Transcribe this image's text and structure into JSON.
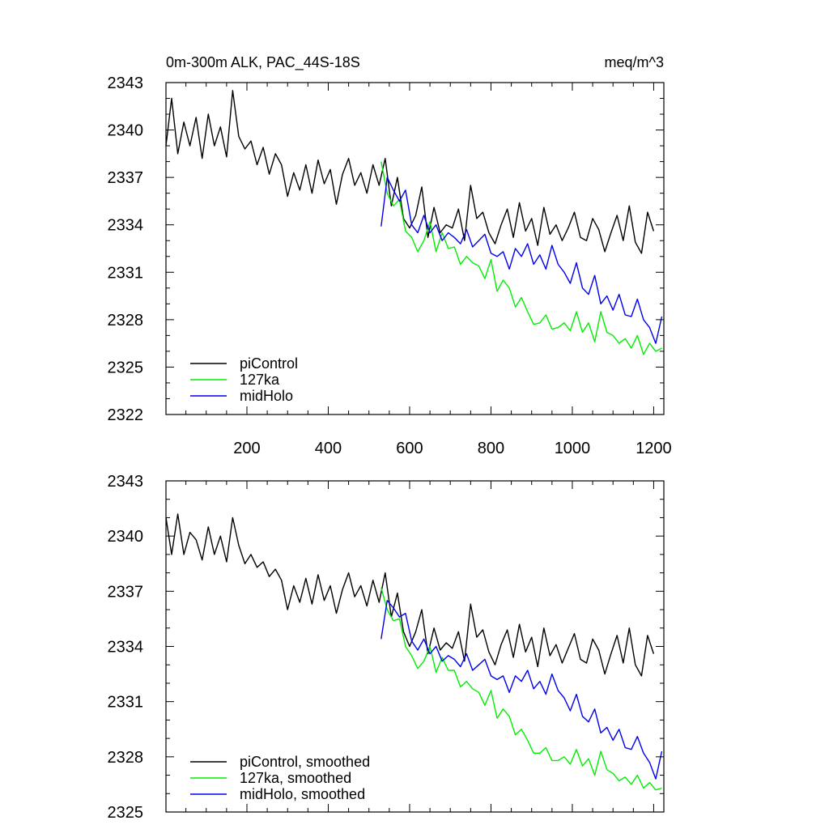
{
  "colors": {
    "piControl": "#000000",
    "127ka": "#00ee00",
    "midHolo": "#0000ee"
  },
  "chart_data": [
    {
      "type": "line",
      "title_left": "0m-300m ALK, PAC_44S-18S",
      "title_right": "meq/m^3",
      "xlabel": "",
      "ylabel": "",
      "xlim": [
        1,
        1225
      ],
      "ylim": [
        2322,
        2343
      ],
      "xticks": [
        200,
        400,
        600,
        800,
        1000,
        1200
      ],
      "xtick_labels": [
        "200",
        "400",
        "600",
        "800",
        "1000",
        "1200"
      ],
      "yticks": [
        2322,
        2325,
        2328,
        2331,
        2334,
        2337,
        2340,
        2343
      ],
      "ytick_labels": [
        "2322",
        "2325",
        "2328",
        "2331",
        "2334",
        "2337",
        "2340",
        "2343"
      ],
      "legend": [
        "piControl",
        "127ka",
        "midHolo"
      ],
      "legend_position": "bottom-left",
      "series": [
        {
          "name": "piControl",
          "key": "piControl",
          "x": [
            1,
            15,
            30,
            45,
            60,
            75,
            90,
            105,
            120,
            135,
            150,
            165,
            180,
            195,
            210,
            225,
            240,
            255,
            270,
            285,
            300,
            315,
            330,
            345,
            360,
            375,
            390,
            405,
            420,
            435,
            450,
            465,
            480,
            495,
            510,
            525,
            540,
            555,
            570,
            585,
            600,
            615,
            630,
            645,
            660,
            675,
            690,
            705,
            720,
            735,
            750,
            765,
            780,
            795,
            810,
            825,
            840,
            855,
            870,
            885,
            900,
            915,
            930,
            945,
            960,
            975,
            990,
            1005,
            1020,
            1035,
            1050,
            1065,
            1080,
            1095,
            1110,
            1125,
            1140,
            1155,
            1170,
            1185,
            1200
          ],
          "values": [
            2339.0,
            2342.0,
            2338.5,
            2340.5,
            2339.0,
            2340.8,
            2338.2,
            2341.0,
            2339.0,
            2340.2,
            2338.3,
            2342.5,
            2339.6,
            2338.8,
            2339.3,
            2337.8,
            2338.9,
            2337.2,
            2338.5,
            2337.8,
            2335.8,
            2337.3,
            2336.2,
            2337.8,
            2336.0,
            2338.1,
            2336.6,
            2337.5,
            2335.3,
            2337.2,
            2338.2,
            2336.5,
            2337.3,
            2336.0,
            2337.8,
            2336.5,
            2338.2,
            2335.2,
            2337.0,
            2334.4,
            2333.8,
            2334.6,
            2336.4,
            2333.2,
            2335.1,
            2333.5,
            2334.0,
            2333.8,
            2335.0,
            2333.0,
            2336.5,
            2334.4,
            2334.8,
            2333.5,
            2332.8,
            2334.0,
            2335.0,
            2333.2,
            2335.4,
            2333.6,
            2334.4,
            2332.7,
            2335.1,
            2333.4,
            2334.0,
            2333.0,
            2333.8,
            2334.8,
            2333.2,
            2333.0,
            2334.4,
            2333.7,
            2332.3,
            2333.5,
            2334.6,
            2333.0,
            2335.2,
            2332.9,
            2332.2,
            2334.8,
            2333.6
          ]
        },
        {
          "name": "127ka",
          "key": "127ka",
          "x": [
            530,
            545,
            560,
            575,
            590,
            605,
            620,
            635,
            650,
            665,
            680,
            695,
            710,
            725,
            740,
            755,
            770,
            785,
            800,
            815,
            830,
            845,
            860,
            875,
            890,
            905,
            920,
            935,
            950,
            965,
            980,
            995,
            1010,
            1025,
            1040,
            1055,
            1070,
            1085,
            1100,
            1115,
            1130,
            1145,
            1160,
            1175,
            1190,
            1205,
            1220
          ],
          "values": [
            2338.0,
            2336.0,
            2335.2,
            2335.6,
            2333.6,
            2333.2,
            2332.3,
            2333.0,
            2334.2,
            2332.3,
            2333.5,
            2332.5,
            2332.6,
            2331.5,
            2332.0,
            2331.6,
            2331.4,
            2330.6,
            2331.8,
            2329.8,
            2330.5,
            2330.0,
            2328.8,
            2329.4,
            2328.5,
            2327.7,
            2327.8,
            2328.3,
            2327.4,
            2327.5,
            2327.8,
            2327.3,
            2328.5,
            2327.2,
            2327.8,
            2326.6,
            2328.5,
            2327.2,
            2327.0,
            2326.5,
            2326.8,
            2326.2,
            2327.0,
            2325.8,
            2326.5,
            2326.0,
            2326.2
          ]
        },
        {
          "name": "midHolo",
          "key": "midHolo",
          "x": [
            530,
            545,
            560,
            575,
            590,
            605,
            620,
            635,
            650,
            665,
            680,
            695,
            710,
            725,
            740,
            755,
            770,
            785,
            800,
            815,
            830,
            845,
            860,
            875,
            890,
            905,
            920,
            935,
            950,
            965,
            980,
            995,
            1010,
            1025,
            1040,
            1055,
            1070,
            1085,
            1100,
            1115,
            1130,
            1145,
            1160,
            1175,
            1190,
            1205,
            1220
          ],
          "values": [
            2333.9,
            2337.0,
            2336.2,
            2335.5,
            2336.2,
            2334.0,
            2333.5,
            2334.6,
            2333.5,
            2334.0,
            2333.0,
            2333.5,
            2333.2,
            2332.8,
            2333.7,
            2332.6,
            2333.0,
            2333.4,
            2332.2,
            2332.0,
            2332.3,
            2331.2,
            2332.5,
            2332.0,
            2332.8,
            2331.5,
            2332.1,
            2331.2,
            2332.7,
            2331.5,
            2331.0,
            2330.3,
            2331.6,
            2330.0,
            2329.6,
            2330.8,
            2329.0,
            2329.5,
            2328.6,
            2329.6,
            2328.3,
            2328.2,
            2329.3,
            2328.0,
            2327.5,
            2326.5,
            2328.2
          ]
        }
      ]
    },
    {
      "type": "line",
      "title_left": "",
      "title_right": "",
      "xlabel": "",
      "ylabel": "",
      "xlim": [
        1,
        1225
      ],
      "ylim": [
        2325,
        2343
      ],
      "xticks": [
        200,
        400,
        600,
        800,
        1000,
        1200
      ],
      "xtick_labels": [],
      "yticks": [
        2325,
        2328,
        2331,
        2334,
        2337,
        2340,
        2343
      ],
      "ytick_labels": [
        "2325",
        "2328",
        "2331",
        "2334",
        "2337",
        "2340",
        "2343"
      ],
      "legend": [
        "piControl, smoothed",
        "127ka, smoothed",
        "midHolo, smoothed"
      ],
      "legend_position": "bottom-left",
      "series": [
        {
          "name": "piControl, smoothed",
          "key": "piControl",
          "x": [
            1,
            15,
            30,
            45,
            60,
            75,
            90,
            105,
            120,
            135,
            150,
            165,
            180,
            195,
            210,
            225,
            240,
            255,
            270,
            285,
            300,
            315,
            330,
            345,
            360,
            375,
            390,
            405,
            420,
            435,
            450,
            465,
            480,
            495,
            510,
            525,
            540,
            555,
            570,
            585,
            600,
            615,
            630,
            645,
            660,
            675,
            690,
            705,
            720,
            735,
            750,
            765,
            780,
            795,
            810,
            825,
            840,
            855,
            870,
            885,
            900,
            915,
            930,
            945,
            960,
            975,
            990,
            1005,
            1020,
            1035,
            1050,
            1065,
            1080,
            1095,
            1110,
            1125,
            1140,
            1155,
            1170,
            1185,
            1200
          ],
          "values": [
            2341.0,
            2339.0,
            2341.2,
            2339.0,
            2340.2,
            2339.8,
            2338.7,
            2340.5,
            2339.0,
            2340.0,
            2338.6,
            2341.0,
            2339.5,
            2338.5,
            2339.0,
            2338.3,
            2338.6,
            2337.8,
            2338.2,
            2337.6,
            2336.0,
            2337.3,
            2336.4,
            2337.7,
            2336.3,
            2337.9,
            2336.5,
            2337.3,
            2335.8,
            2337.1,
            2338.0,
            2336.7,
            2337.3,
            2336.2,
            2337.6,
            2336.4,
            2338.0,
            2335.6,
            2336.9,
            2334.8,
            2334.0,
            2334.8,
            2336.0,
            2333.6,
            2335.0,
            2333.8,
            2334.2,
            2333.9,
            2334.8,
            2333.2,
            2336.3,
            2334.5,
            2334.9,
            2333.7,
            2333.0,
            2334.1,
            2334.9,
            2333.4,
            2335.2,
            2333.7,
            2334.5,
            2332.9,
            2335.0,
            2333.5,
            2334.1,
            2333.1,
            2333.9,
            2334.7,
            2333.3,
            2333.1,
            2334.4,
            2333.8,
            2332.5,
            2333.6,
            2334.6,
            2333.1,
            2335.0,
            2333.0,
            2332.4,
            2334.6,
            2333.6
          ]
        },
        {
          "name": "127ka, smoothed",
          "key": "127ka",
          "x": [
            530,
            545,
            560,
            575,
            590,
            605,
            620,
            635,
            650,
            665,
            680,
            695,
            710,
            725,
            740,
            755,
            770,
            785,
            800,
            815,
            830,
            845,
            860,
            875,
            890,
            905,
            920,
            935,
            950,
            965,
            980,
            995,
            1010,
            1025,
            1040,
            1055,
            1070,
            1085,
            1100,
            1115,
            1130,
            1145,
            1160,
            1175,
            1190,
            1205,
            1220
          ],
          "values": [
            2337.2,
            2336.0,
            2335.4,
            2335.5,
            2334.0,
            2333.5,
            2332.8,
            2333.2,
            2334.0,
            2332.6,
            2333.4,
            2332.7,
            2332.7,
            2331.8,
            2332.1,
            2331.7,
            2331.5,
            2330.8,
            2331.6,
            2330.1,
            2330.6,
            2330.2,
            2329.2,
            2329.5,
            2328.9,
            2328.2,
            2328.2,
            2328.5,
            2327.8,
            2327.8,
            2328.0,
            2327.6,
            2328.4,
            2327.5,
            2327.9,
            2327.0,
            2328.3,
            2327.3,
            2327.1,
            2326.7,
            2326.9,
            2326.5,
            2327.0,
            2326.3,
            2326.6,
            2326.2,
            2326.3
          ]
        },
        {
          "name": "midHolo, smoothed",
          "key": "midHolo",
          "x": [
            530,
            545,
            560,
            575,
            590,
            605,
            620,
            635,
            650,
            665,
            680,
            695,
            710,
            725,
            740,
            755,
            770,
            785,
            800,
            815,
            830,
            845,
            860,
            875,
            890,
            905,
            920,
            935,
            950,
            965,
            980,
            995,
            1010,
            1025,
            1040,
            1055,
            1070,
            1085,
            1100,
            1115,
            1130,
            1145,
            1160,
            1175,
            1190,
            1205,
            1220
          ],
          "values": [
            2334.4,
            2336.5,
            2336.1,
            2335.6,
            2335.8,
            2334.3,
            2333.8,
            2334.4,
            2333.6,
            2334.0,
            2333.2,
            2333.5,
            2333.3,
            2332.9,
            2333.6,
            2332.7,
            2333.0,
            2333.3,
            2332.4,
            2332.2,
            2332.4,
            2331.5,
            2332.4,
            2332.1,
            2332.7,
            2331.7,
            2332.1,
            2331.4,
            2332.5,
            2331.6,
            2331.2,
            2330.5,
            2331.4,
            2330.2,
            2329.9,
            2330.6,
            2329.3,
            2329.6,
            2328.9,
            2329.5,
            2328.5,
            2328.4,
            2329.1,
            2328.2,
            2327.7,
            2326.8,
            2328.3
          ]
        }
      ]
    }
  ]
}
